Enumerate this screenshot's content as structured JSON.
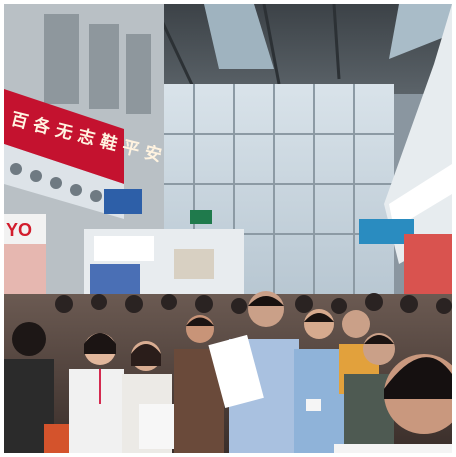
{
  "photo": {
    "subject": "exhibition-hall-crowd",
    "banner": {
      "text": "百 各 无 志 鞋 平 安",
      "color": "#c4122f"
    },
    "sign_text": "YO"
  }
}
